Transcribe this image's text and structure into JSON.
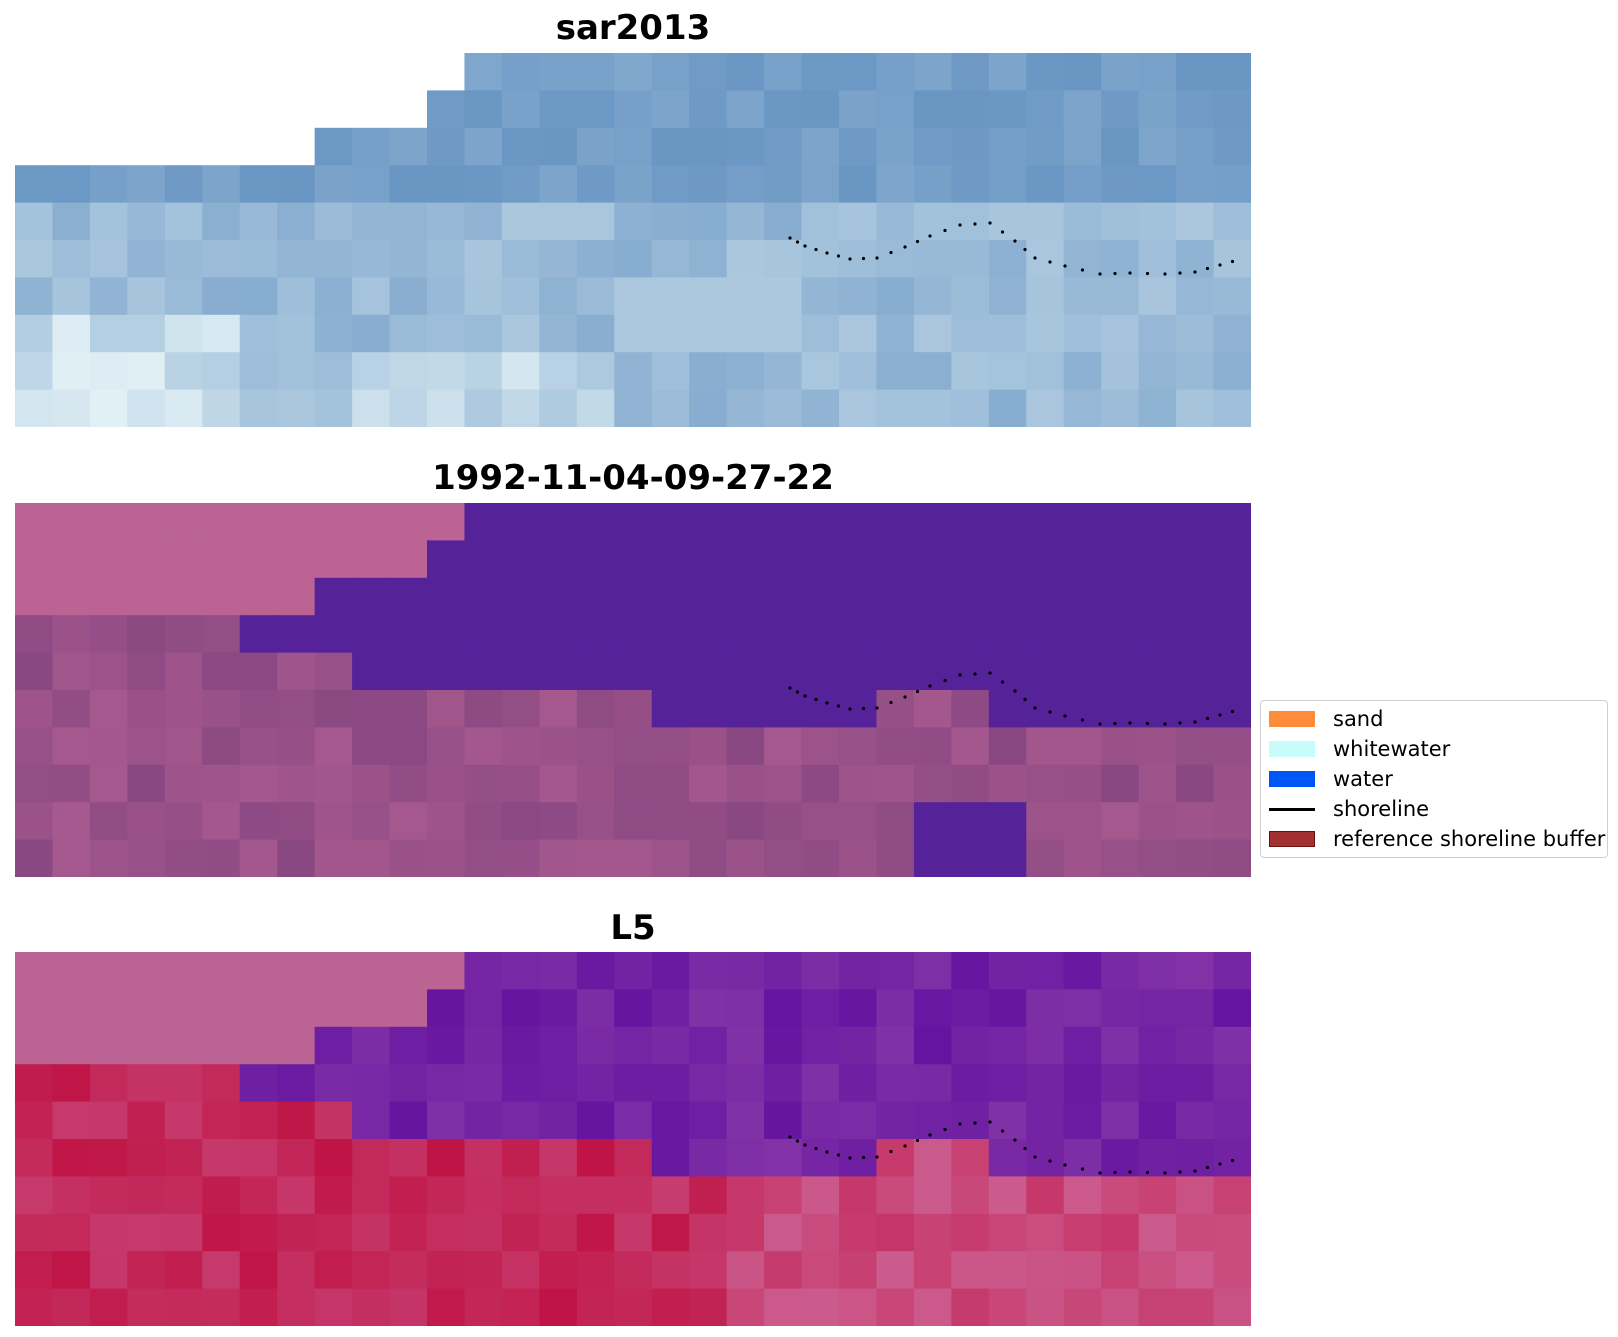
{
  "panels": [
    {
      "title": "sar2013",
      "name": "sar-image"
    },
    {
      "title": "1992-11-04-09-27-22",
      "name": "classified-image"
    },
    {
      "title": "L5",
      "name": "mndwi-image"
    }
  ],
  "legend": {
    "items": [
      {
        "label": "sand",
        "color": "#ff8c3a",
        "kind": "patch"
      },
      {
        "label": "whitewater",
        "color": "#c8fcfc",
        "kind": "patch"
      },
      {
        "label": "water",
        "color": "#0055f5",
        "kind": "patch"
      },
      {
        "label": "shoreline",
        "color": "#000000",
        "kind": "line"
      },
      {
        "label": "reference shoreline buffer",
        "color": "#a23030",
        "kind": "patch"
      }
    ]
  },
  "colors": {
    "nodata": "#ffffff",
    "class_water": "#55229a",
    "class_land": "#8a4a85",
    "mask_pink": "#bb6494",
    "sar_base": "#6e9ac4",
    "index_water": "#6515a0",
    "index_land": "#c01848",
    "shoreline_dots": "#000000"
  }
}
